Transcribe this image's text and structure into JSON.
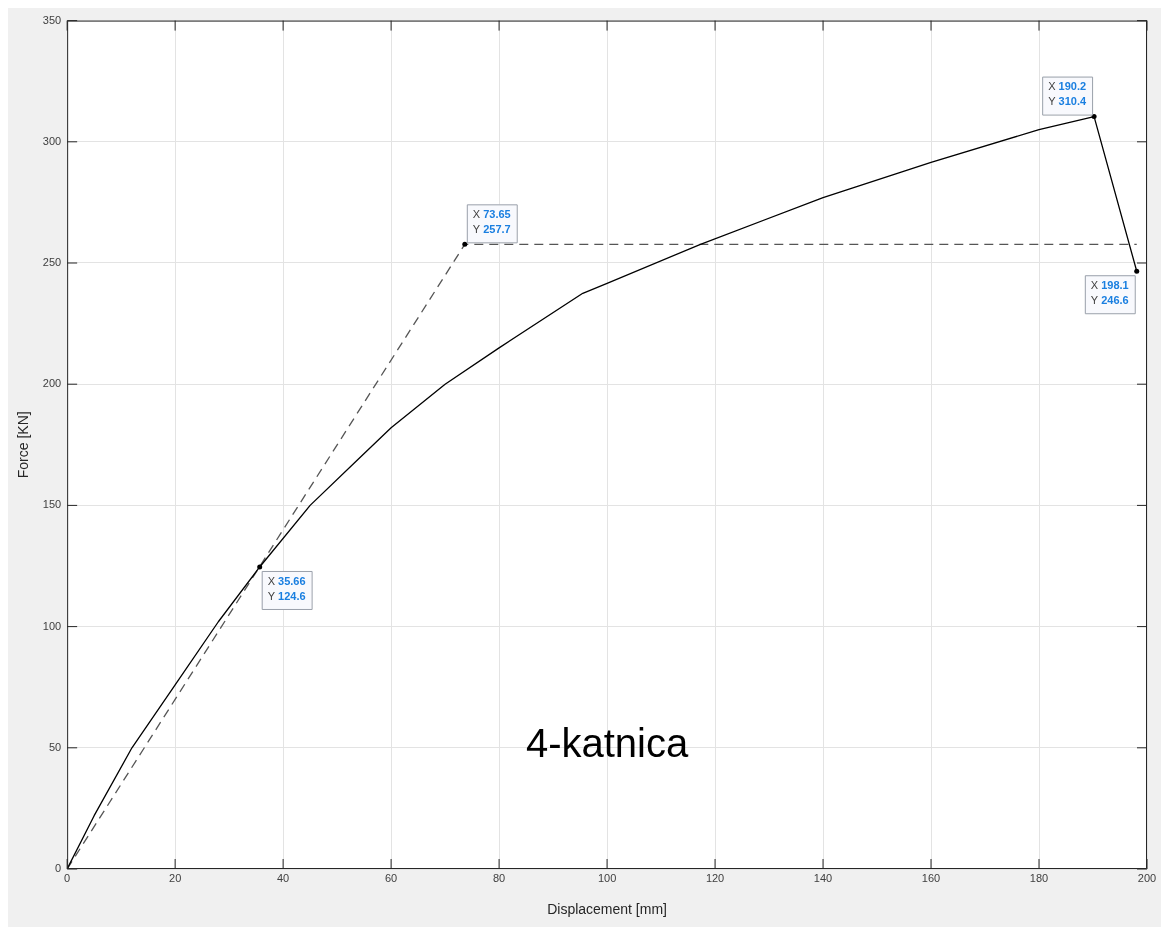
{
  "chart_data": {
    "type": "line",
    "xlabel": "Displacement [mm]",
    "ylabel": "Force [KN]",
    "xlim": [
      0,
      200
    ],
    "xticks": [
      0,
      20,
      40,
      60,
      80,
      100,
      120,
      140,
      160,
      180,
      200
    ],
    "ylim": [
      0,
      350
    ],
    "yticks": [
      0,
      50,
      100,
      150,
      200,
      250,
      300,
      350
    ],
    "grid": true,
    "marker": "none",
    "series": [
      {
        "color": "#000000",
        "line_style": "solid",
        "x": [
          0,
          5,
          12,
          20,
          28,
          35.66,
          45,
          53.9,
          60,
          70,
          80,
          95.5,
          100,
          117.3,
          140,
          160,
          180,
          190.2,
          198.1
        ],
        "values": [
          0,
          22,
          50,
          76,
          102,
          124.6,
          150,
          169,
          182,
          200,
          215,
          237.5,
          241.6,
          257.7,
          277,
          291.5,
          305,
          310.4,
          246.6
        ]
      },
      {
        "color": "#555555",
        "line_style": "dashed",
        "x": [
          0,
          73.65,
          198.1
        ],
        "values": [
          0,
          257.7,
          257.7
        ]
      }
    ],
    "annotations": [
      {
        "text": "X 35.66\nY 124.6",
        "x": 35.66,
        "y": 124.6
      },
      {
        "text": "X 73.65\nY 257.7",
        "x": 73.65,
        "y": 257.7
      },
      {
        "text": "X 190.2\nY 310.4",
        "x": 190.2,
        "y": 310.4
      },
      {
        "text": "X 198.1\nY 246.6",
        "x": 198.1,
        "y": 246.6
      },
      "4-katnica"
    ]
  }
}
